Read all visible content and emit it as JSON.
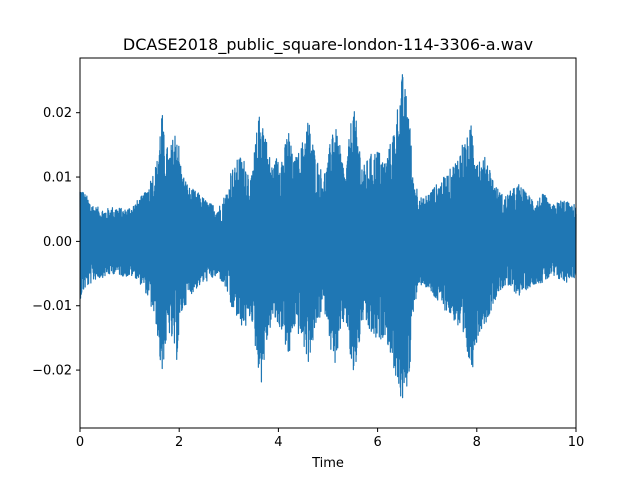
{
  "chart_data": {
    "type": "line",
    "title": "DCASE2018_public_square-london-114-3306-a.wav",
    "xlabel": "Time",
    "ylabel": "",
    "xlim": [
      0,
      10
    ],
    "ylim": [
      -0.029,
      0.0285
    ],
    "x_ticks": [
      0,
      2,
      4,
      6,
      8,
      10
    ],
    "x_tick_labels": [
      "0",
      "2",
      "4",
      "6",
      "8",
      "10"
    ],
    "y_ticks": [
      -0.02,
      -0.01,
      0.0,
      0.01,
      0.02
    ],
    "y_tick_labels": [
      "−0.02",
      "−0.01",
      "0.00",
      "0.01",
      "0.02"
    ],
    "grid": false,
    "legend": "none",
    "series": [
      {
        "color": "#1f77b4",
        "envelope": {
          "x": [
            0.0,
            0.1,
            0.3,
            0.5,
            0.7,
            0.9,
            1.1,
            1.3,
            1.4,
            1.55,
            1.65,
            1.7,
            1.8,
            1.95,
            2.05,
            2.2,
            2.4,
            2.6,
            2.8,
            3.0,
            3.05,
            3.1,
            3.2,
            3.35,
            3.45,
            3.55,
            3.65,
            3.72,
            3.8,
            3.9,
            4.0,
            4.1,
            4.2,
            4.3,
            4.45,
            4.6,
            4.75,
            4.9,
            5.0,
            5.1,
            5.25,
            5.35,
            5.5,
            5.6,
            5.7,
            5.85,
            6.0,
            6.15,
            6.3,
            6.45,
            6.5,
            6.55,
            6.65,
            6.7,
            6.8,
            6.9,
            7.0,
            7.2,
            7.4,
            7.6,
            7.7,
            7.8,
            7.9,
            8.0,
            8.1,
            8.2,
            8.3,
            8.4,
            8.55,
            8.7,
            8.85,
            9.0,
            9.2,
            9.35,
            9.5,
            9.6,
            9.7,
            9.8,
            9.9,
            10.0
          ],
          "top": [
            0.009,
            0.0075,
            0.0055,
            0.005,
            0.0055,
            0.005,
            0.006,
            0.0075,
            0.0095,
            0.0125,
            0.021,
            0.016,
            0.014,
            0.0185,
            0.011,
            0.0085,
            0.0075,
            0.006,
            0.0055,
            0.0085,
            0.012,
            0.011,
            0.0135,
            0.0125,
            0.0095,
            0.0165,
            0.0215,
            0.018,
            0.014,
            0.0115,
            0.0145,
            0.0135,
            0.018,
            0.0125,
            0.0145,
            0.0195,
            0.0135,
            0.0105,
            0.0125,
            0.0195,
            0.0145,
            0.0105,
            0.0215,
            0.0175,
            0.0115,
            0.0135,
            0.0145,
            0.0125,
            0.0165,
            0.0235,
            0.0262,
            0.024,
            0.0205,
            0.0105,
            0.0085,
            0.0065,
            0.0075,
            0.009,
            0.0105,
            0.013,
            0.0155,
            0.016,
            0.0185,
            0.0145,
            0.0125,
            0.0135,
            0.0105,
            0.0085,
            0.007,
            0.008,
            0.009,
            0.0075,
            0.0065,
            0.0075,
            0.0055,
            0.006,
            0.0065,
            0.0065,
            0.0055,
            0.006
          ],
          "bottom": [
            -0.009,
            -0.0075,
            -0.006,
            -0.0055,
            -0.005,
            -0.0055,
            -0.0055,
            -0.0075,
            -0.0095,
            -0.0135,
            -0.022,
            -0.0175,
            -0.0145,
            -0.0185,
            -0.0115,
            -0.0085,
            -0.007,
            -0.006,
            -0.0055,
            -0.0085,
            -0.0115,
            -0.0105,
            -0.013,
            -0.0135,
            -0.0115,
            -0.0175,
            -0.0225,
            -0.0185,
            -0.0145,
            -0.012,
            -0.0135,
            -0.014,
            -0.0195,
            -0.0135,
            -0.015,
            -0.019,
            -0.014,
            -0.0105,
            -0.0125,
            -0.0205,
            -0.0155,
            -0.0115,
            -0.022,
            -0.018,
            -0.0125,
            -0.0145,
            -0.016,
            -0.0145,
            -0.019,
            -0.024,
            -0.0262,
            -0.0245,
            -0.0205,
            -0.0115,
            -0.0085,
            -0.0065,
            -0.0075,
            -0.0095,
            -0.011,
            -0.013,
            -0.0165,
            -0.018,
            -0.0205,
            -0.0155,
            -0.0135,
            -0.0125,
            -0.0105,
            -0.0085,
            -0.007,
            -0.0075,
            -0.0085,
            -0.0075,
            -0.0065,
            -0.0065,
            -0.0055,
            -0.006,
            -0.006,
            -0.0065,
            -0.0055,
            -0.006
          ]
        }
      }
    ]
  }
}
